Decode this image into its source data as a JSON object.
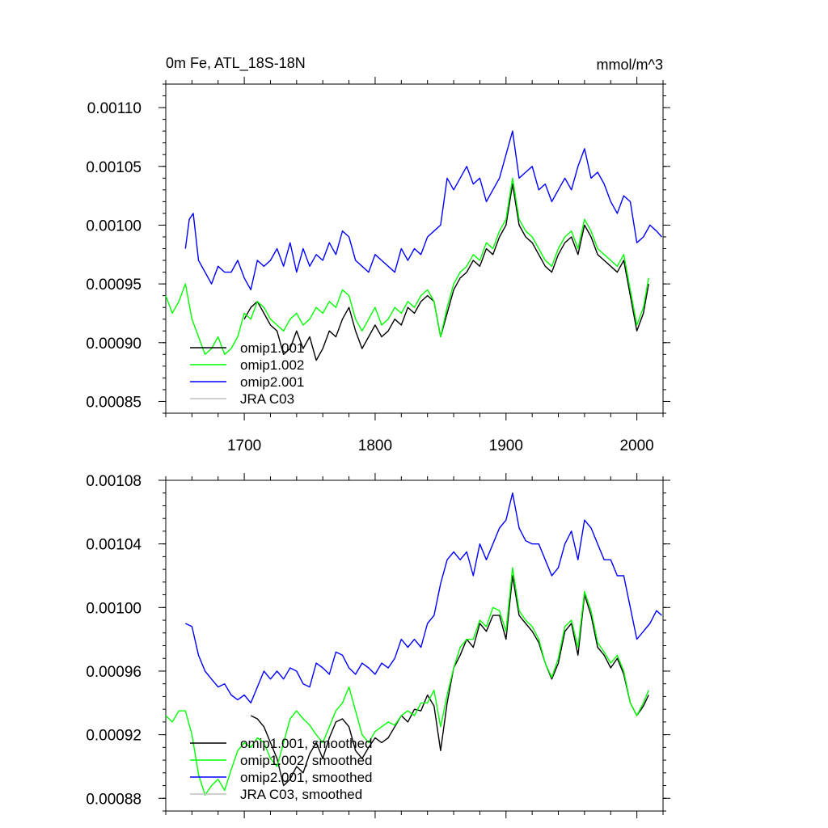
{
  "figure": {
    "top_title_left": "0m Fe, ATL_18S-18N",
    "top_title_right": "mmol/m^3"
  },
  "chart_data": [
    {
      "type": "line",
      "title": "0m Fe, ATL_18S-18N",
      "units": "mmol/m^3",
      "xlim": [
        1640,
        2020
      ],
      "ylim": [
        0.00084,
        0.00112
      ],
      "xticks": [
        1700,
        1800,
        1900,
        2000
      ],
      "xtick_labels": [
        "1700",
        "1800",
        "1900",
        "2000"
      ],
      "yticks": [
        0.00085,
        0.0009,
        0.00095,
        0.001,
        0.00105,
        0.0011
      ],
      "ytick_labels": [
        "0.00085",
        "0.00090",
        "0.00095",
        "0.00100",
        "0.00105",
        "0.00110"
      ],
      "legend_position": "lower-left",
      "series": [
        {
          "name": "omip1.001",
          "color": "#000000",
          "x": [
            1700,
            1705,
            1710,
            1715,
            1720,
            1725,
            1730,
            1735,
            1740,
            1745,
            1750,
            1755,
            1760,
            1765,
            1770,
            1775,
            1780,
            1785,
            1790,
            1795,
            1800,
            1805,
            1810,
            1815,
            1820,
            1825,
            1830,
            1835,
            1840,
            1845,
            1850,
            1855,
            1860,
            1865,
            1870,
            1875,
            1880,
            1885,
            1890,
            1895,
            1900,
            1905,
            1910,
            1915,
            1920,
            1925,
            1930,
            1935,
            1940,
            1945,
            1950,
            1955,
            1960,
            1965,
            1970,
            1975,
            1980,
            1985,
            1990,
            1995,
            2000,
            2005,
            2009
          ],
          "y": [
            0.00092,
            0.00093,
            0.000935,
            0.000925,
            0.000915,
            0.00091,
            0.00089,
            0.000895,
            0.00091,
            0.000895,
            0.000905,
            0.000885,
            0.000895,
            0.00091,
            0.000905,
            0.00092,
            0.00093,
            0.00091,
            0.000895,
            0.000905,
            0.000915,
            0.000905,
            0.00091,
            0.00092,
            0.000915,
            0.00093,
            0.000925,
            0.000935,
            0.00094,
            0.000935,
            0.000905,
            0.000925,
            0.000945,
            0.000955,
            0.00096,
            0.00097,
            0.000965,
            0.00098,
            0.000975,
            0.00099,
            0.001,
            0.001035,
            0.001,
            0.00099,
            0.000985,
            0.000975,
            0.000965,
            0.00096,
            0.000975,
            0.000985,
            0.00099,
            0.000975,
            0.001,
            0.00099,
            0.000975,
            0.00097,
            0.000965,
            0.00096,
            0.00097,
            0.00094,
            0.00091,
            0.000925,
            0.00095
          ]
        },
        {
          "name": "omip1.002",
          "color": "#00ff00",
          "x": [
            1640,
            1645,
            1650,
            1655,
            1660,
            1665,
            1670,
            1675,
            1680,
            1685,
            1690,
            1695,
            1700,
            1705,
            1710,
            1715,
            1720,
            1725,
            1730,
            1735,
            1740,
            1745,
            1750,
            1755,
            1760,
            1765,
            1770,
            1775,
            1780,
            1785,
            1790,
            1795,
            1800,
            1805,
            1810,
            1815,
            1820,
            1825,
            1830,
            1835,
            1840,
            1845,
            1850,
            1855,
            1860,
            1865,
            1870,
            1875,
            1880,
            1885,
            1890,
            1895,
            1900,
            1905,
            1910,
            1915,
            1920,
            1925,
            1930,
            1935,
            1940,
            1945,
            1950,
            1955,
            1960,
            1965,
            1970,
            1975,
            1980,
            1985,
            1990,
            1995,
            2000,
            2005,
            2009
          ],
          "y": [
            0.00094,
            0.000925,
            0.000935,
            0.00095,
            0.00092,
            0.000905,
            0.00089,
            0.000895,
            0.000905,
            0.00089,
            0.000895,
            0.000905,
            0.000925,
            0.00092,
            0.000935,
            0.00093,
            0.00092,
            0.000915,
            0.00091,
            0.00092,
            0.000925,
            0.000915,
            0.00092,
            0.00093,
            0.000925,
            0.000935,
            0.00093,
            0.000945,
            0.00094,
            0.00092,
            0.00091,
            0.00092,
            0.00093,
            0.000915,
            0.00092,
            0.00093,
            0.000925,
            0.000935,
            0.00093,
            0.00094,
            0.000945,
            0.000935,
            0.000905,
            0.00093,
            0.00095,
            0.00096,
            0.000965,
            0.000975,
            0.00097,
            0.000985,
            0.00098,
            0.000995,
            0.001005,
            0.00104,
            0.001005,
            0.000995,
            0.00099,
            0.00098,
            0.00097,
            0.000965,
            0.00098,
            0.00099,
            0.000995,
            0.00098,
            0.001005,
            0.000995,
            0.00098,
            0.000975,
            0.00097,
            0.000965,
            0.000975,
            0.000945,
            0.000915,
            0.00093,
            0.000955
          ]
        },
        {
          "name": "omip2.001",
          "color": "#0000ff",
          "x": [
            1655,
            1658,
            1661,
            1665,
            1670,
            1675,
            1680,
            1685,
            1690,
            1695,
            1700,
            1705,
            1710,
            1715,
            1720,
            1725,
            1730,
            1735,
            1740,
            1745,
            1750,
            1755,
            1760,
            1765,
            1770,
            1775,
            1780,
            1785,
            1790,
            1795,
            1800,
            1805,
            1810,
            1815,
            1820,
            1825,
            1830,
            1835,
            1840,
            1845,
            1850,
            1855,
            1860,
            1865,
            1870,
            1875,
            1880,
            1885,
            1890,
            1895,
            1900,
            1905,
            1910,
            1915,
            1920,
            1925,
            1930,
            1935,
            1940,
            1945,
            1950,
            1955,
            1960,
            1965,
            1970,
            1975,
            1980,
            1985,
            1990,
            1995,
            2000,
            2005,
            2010,
            2015,
            2019
          ],
          "y": [
            0.00098,
            0.001005,
            0.00101,
            0.00097,
            0.00096,
            0.00095,
            0.000965,
            0.00096,
            0.00096,
            0.00097,
            0.000955,
            0.000945,
            0.00097,
            0.000965,
            0.00097,
            0.00098,
            0.000965,
            0.000985,
            0.00096,
            0.00098,
            0.000965,
            0.000975,
            0.00097,
            0.000985,
            0.000975,
            0.000995,
            0.00099,
            0.00097,
            0.000965,
            0.00096,
            0.000975,
            0.00097,
            0.000965,
            0.00096,
            0.00098,
            0.00097,
            0.00098,
            0.000975,
            0.00099,
            0.000995,
            0.001,
            0.00104,
            0.00103,
            0.00104,
            0.00105,
            0.001035,
            0.00104,
            0.00102,
            0.00103,
            0.00104,
            0.00106,
            0.00108,
            0.00104,
            0.001045,
            0.00105,
            0.00103,
            0.001035,
            0.00102,
            0.00103,
            0.00104,
            0.00103,
            0.00105,
            0.001065,
            0.00104,
            0.001045,
            0.001035,
            0.00102,
            0.00101,
            0.001025,
            0.00102,
            0.000985,
            0.00099,
            0.001,
            0.000995,
            0.00099
          ]
        },
        {
          "name": "JRA C03",
          "color": "#c0c0c0",
          "x": [],
          "y": []
        }
      ]
    },
    {
      "type": "line",
      "title": "",
      "xlim": [
        1640,
        2020
      ],
      "ylim": [
        0.000872,
        0.00108
      ],
      "xticks": [
        1700,
        1800,
        1900,
        2000
      ],
      "yticks": [
        0.00088,
        0.00092,
        0.00096,
        0.001,
        0.00104,
        0.00108
      ],
      "ytick_labels": [
        "0.00088",
        "0.00092",
        "0.00096",
        "0.00100",
        "0.00104",
        "0.00108"
      ],
      "legend_position": "lower-left",
      "series": [
        {
          "name": "omip1.001, smoothed",
          "color": "#000000",
          "x": [
            1705,
            1710,
            1715,
            1720,
            1725,
            1730,
            1735,
            1740,
            1745,
            1750,
            1755,
            1760,
            1765,
            1770,
            1775,
            1780,
            1785,
            1790,
            1795,
            1800,
            1805,
            1810,
            1815,
            1820,
            1825,
            1830,
            1835,
            1840,
            1845,
            1850,
            1855,
            1860,
            1865,
            1870,
            1875,
            1880,
            1885,
            1890,
            1895,
            1900,
            1905,
            1910,
            1915,
            1920,
            1925,
            1930,
            1935,
            1940,
            1945,
            1950,
            1955,
            1960,
            1965,
            1970,
            1975,
            1980,
            1985,
            1990,
            1995,
            2000,
            2005,
            2009
          ],
          "y": [
            0.000932,
            0.00093,
            0.000925,
            0.000915,
            0.000905,
            0.000888,
            0.000892,
            0.0009,
            0.000896,
            0.000908,
            0.000915,
            0.000905,
            0.000918,
            0.000928,
            0.00093,
            0.000925,
            0.00091,
            0.000905,
            0.000912,
            0.000918,
            0.000915,
            0.000918,
            0.000925,
            0.000932,
            0.000928,
            0.000936,
            0.000935,
            0.000945,
            0.000938,
            0.00091,
            0.00094,
            0.000962,
            0.00097,
            0.00098,
            0.000975,
            0.00099,
            0.000985,
            0.000995,
            0.000995,
            0.00098,
            0.00102,
            0.000995,
            0.00099,
            0.000985,
            0.000978,
            0.000965,
            0.000955,
            0.000965,
            0.000985,
            0.00099,
            0.00097,
            0.001008,
            0.000995,
            0.000975,
            0.00097,
            0.000962,
            0.000968,
            0.000958,
            0.00094,
            0.000932,
            0.000938,
            0.000945
          ]
        },
        {
          "name": "omip1.002, smoothed",
          "color": "#00ff00",
          "x": [
            1640,
            1645,
            1650,
            1655,
            1660,
            1665,
            1670,
            1675,
            1680,
            1685,
            1690,
            1695,
            1700,
            1705,
            1710,
            1715,
            1720,
            1725,
            1730,
            1735,
            1740,
            1745,
            1750,
            1755,
            1760,
            1765,
            1770,
            1775,
            1780,
            1785,
            1790,
            1795,
            1800,
            1805,
            1810,
            1815,
            1820,
            1825,
            1830,
            1835,
            1840,
            1845,
            1850,
            1855,
            1860,
            1865,
            1870,
            1875,
            1880,
            1885,
            1890,
            1895,
            1900,
            1905,
            1910,
            1915,
            1920,
            1925,
            1930,
            1935,
            1940,
            1945,
            1950,
            1955,
            1960,
            1965,
            1970,
            1975,
            1980,
            1985,
            1990,
            1995,
            2000,
            2005,
            2009
          ],
          "y": [
            0.000932,
            0.000928,
            0.000935,
            0.000935,
            0.00092,
            0.000895,
            0.000882,
            0.000888,
            0.000892,
            0.000885,
            0.000898,
            0.00091,
            0.000915,
            0.000912,
            0.000918,
            0.000915,
            0.000905,
            0.0009,
            0.000915,
            0.00093,
            0.000935,
            0.00093,
            0.000926,
            0.00092,
            0.000915,
            0.000925,
            0.000935,
            0.00094,
            0.00095,
            0.000935,
            0.00092,
            0.000915,
            0.000922,
            0.000925,
            0.000928,
            0.000926,
            0.000932,
            0.000935,
            0.000932,
            0.00094,
            0.00094,
            0.000948,
            0.000925,
            0.000945,
            0.000962,
            0.000975,
            0.00098,
            0.00098,
            0.000992,
            0.000988,
            0.001,
            0.000998,
            0.000985,
            0.001025,
            0.000998,
            0.000992,
            0.000988,
            0.00098,
            0.000965,
            0.000956,
            0.000968,
            0.000988,
            0.000992,
            0.000975,
            0.00101,
            0.000998,
            0.000978,
            0.000972,
            0.000965,
            0.00097,
            0.00096,
            0.00094,
            0.000932,
            0.00094,
            0.000948
          ]
        },
        {
          "name": "omip2.001, smoothed",
          "color": "#0000ff",
          "x": [
            1655,
            1660,
            1665,
            1670,
            1675,
            1680,
            1685,
            1690,
            1695,
            1700,
            1705,
            1710,
            1715,
            1720,
            1725,
            1730,
            1735,
            1740,
            1745,
            1750,
            1755,
            1760,
            1765,
            1770,
            1775,
            1780,
            1785,
            1790,
            1795,
            1800,
            1805,
            1810,
            1815,
            1820,
            1825,
            1830,
            1835,
            1840,
            1845,
            1850,
            1855,
            1860,
            1865,
            1870,
            1875,
            1880,
            1885,
            1890,
            1895,
            1900,
            1905,
            1910,
            1915,
            1920,
            1925,
            1930,
            1935,
            1940,
            1945,
            1950,
            1955,
            1960,
            1965,
            1970,
            1975,
            1980,
            1985,
            1990,
            1995,
            2000,
            2005,
            2010,
            2015,
            2019
          ],
          "y": [
            0.00099,
            0.000988,
            0.00097,
            0.00096,
            0.000955,
            0.00095,
            0.000952,
            0.000945,
            0.000942,
            0.000945,
            0.00094,
            0.00095,
            0.00096,
            0.000955,
            0.00096,
            0.000955,
            0.000962,
            0.00096,
            0.000952,
            0.00095,
            0.000965,
            0.000962,
            0.000958,
            0.000972,
            0.00097,
            0.000962,
            0.000958,
            0.000965,
            0.000962,
            0.000958,
            0.000965,
            0.000962,
            0.000968,
            0.00098,
            0.000975,
            0.00098,
            0.000975,
            0.00099,
            0.000995,
            0.001015,
            0.00103,
            0.001035,
            0.00103,
            0.001035,
            0.00102,
            0.00104,
            0.00103,
            0.00104,
            0.00105,
            0.001055,
            0.001072,
            0.00105,
            0.001042,
            0.00104,
            0.00104,
            0.00103,
            0.00102,
            0.001025,
            0.00104,
            0.001048,
            0.00103,
            0.001055,
            0.00105,
            0.00104,
            0.00103,
            0.00103,
            0.00102,
            0.00102,
            0.001,
            0.00098,
            0.000985,
            0.00099,
            0.000998,
            0.000995
          ]
        },
        {
          "name": "JRA C03, smoothed",
          "color": "#c0c0c0",
          "x": [],
          "y": []
        }
      ]
    }
  ]
}
